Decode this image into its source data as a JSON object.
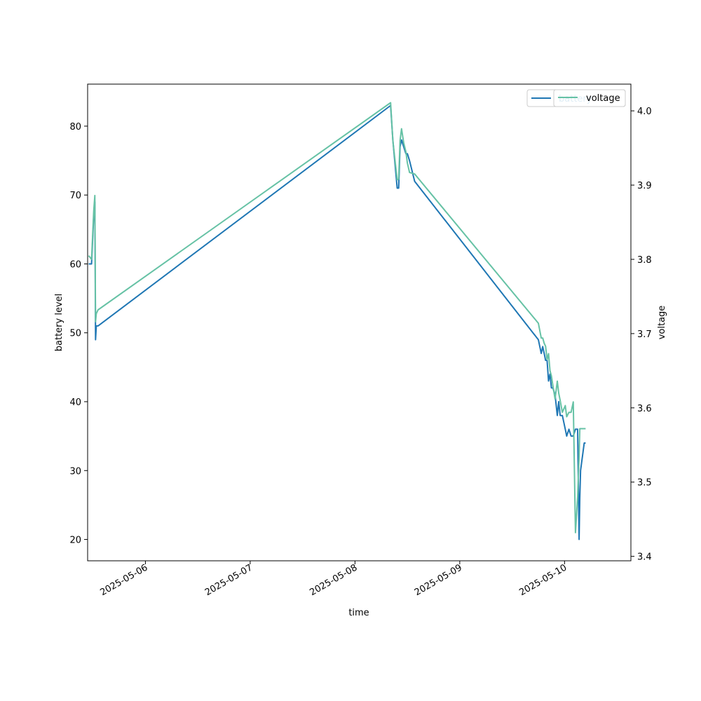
{
  "chart_data": {
    "type": "line",
    "xlabel": "time",
    "ylabel": "battery level",
    "y2label": "voltage",
    "x_ticks": [
      "2025-05-06",
      "2025-05-07",
      "2025-05-08",
      "2025-05-09",
      "2025-05-10"
    ],
    "y_ticks": [
      "20",
      "30",
      "40",
      "50",
      "60",
      "70",
      "80"
    ],
    "y2_ticks": [
      "3.4",
      "3.5",
      "3.6",
      "3.7",
      "3.8",
      "3.9",
      "4.0"
    ],
    "xlim": [
      "2025-05-05 10:46",
      "2025-05-10 15:12"
    ],
    "ylim": [
      16.9,
      86.1
    ],
    "y2lim": [
      3.394,
      4.036
    ],
    "grid": false,
    "legend_placement": "top-right",
    "colors": {
      "battery": "#1f77b4",
      "voltage": "#66c2a5"
    },
    "series": [
      {
        "name": "battery",
        "axis": "left",
        "x": [
          "2025-05-05 11:00",
          "2025-05-05 11:40",
          "2025-05-05 12:10",
          "2025-05-05 12:25",
          "2025-05-05 12:35",
          "2025-05-05 12:45",
          "2025-05-05 13:10",
          "2025-05-08 08:10",
          "2025-05-08 08:40",
          "2025-05-08 09:40",
          "2025-05-08 10:00",
          "2025-05-08 10:20",
          "2025-05-08 10:40",
          "2025-05-08 11:10",
          "2025-05-08 11:40",
          "2025-05-08 12:00",
          "2025-05-08 12:30",
          "2025-05-08 13:40",
          "2025-05-09 18:00",
          "2025-05-09 18:40",
          "2025-05-09 19:00",
          "2025-05-09 19:20",
          "2025-05-09 19:40",
          "2025-05-09 20:00",
          "2025-05-09 20:20",
          "2025-05-09 20:40",
          "2025-05-09 21:00",
          "2025-05-09 21:20",
          "2025-05-09 21:50",
          "2025-05-09 22:20",
          "2025-05-09 22:40",
          "2025-05-09 23:00",
          "2025-05-09 23:30",
          "2025-05-10 00:10",
          "2025-05-10 00:30",
          "2025-05-10 01:00",
          "2025-05-10 01:30",
          "2025-05-10 02:00",
          "2025-05-10 02:30",
          "2025-05-10 03:00",
          "2025-05-10 03:20",
          "2025-05-10 03:30",
          "2025-05-10 03:40",
          "2025-05-10 04:30",
          "2025-05-10 04:50"
        ],
        "values": [
          60,
          60,
          67,
          69,
          49,
          51,
          51,
          83,
          78,
          71,
          71,
          77,
          78,
          77,
          76,
          76,
          75,
          72,
          49,
          47,
          48,
          47,
          46,
          46,
          43,
          44,
          42,
          42,
          41,
          38,
          40,
          38,
          38,
          36,
          35,
          36,
          35,
          35,
          36,
          36,
          20,
          26,
          30,
          34,
          34
        ]
      },
      {
        "name": "voltage",
        "axis": "right",
        "x": [
          "2025-05-05 11:00",
          "2025-05-05 11:40",
          "2025-05-05 12:10",
          "2025-05-05 12:25",
          "2025-05-05 12:35",
          "2025-05-05 12:45",
          "2025-05-05 13:10",
          "2025-05-08 08:10",
          "2025-05-08 08:40",
          "2025-05-08 09:40",
          "2025-05-08 10:00",
          "2025-05-08 10:20",
          "2025-05-08 10:40",
          "2025-05-08 11:10",
          "2025-05-08 11:40",
          "2025-05-08 12:00",
          "2025-05-08 12:30",
          "2025-05-08 13:40",
          "2025-05-09 18:00",
          "2025-05-09 18:40",
          "2025-05-09 19:00",
          "2025-05-09 19:20",
          "2025-05-09 19:40",
          "2025-05-09 20:00",
          "2025-05-09 20:20",
          "2025-05-09 20:40",
          "2025-05-09 21:00",
          "2025-05-09 21:20",
          "2025-05-09 21:50",
          "2025-05-09 22:20",
          "2025-05-09 22:40",
          "2025-05-09 23:00",
          "2025-05-09 23:30",
          "2025-05-10 00:10",
          "2025-05-10 00:30",
          "2025-05-10 01:00",
          "2025-05-10 01:30",
          "2025-05-10 02:00",
          "2025-05-10 02:30",
          "2025-05-10 03:00",
          "2025-05-10 03:20",
          "2025-05-10 03:30",
          "2025-05-10 03:40",
          "2025-05-10 04:30",
          "2025-05-10 04:50"
        ],
        "values": [
          3.805,
          3.8,
          3.865,
          3.886,
          3.716,
          3.727,
          3.732,
          4.011,
          3.96,
          3.907,
          3.908,
          3.96,
          3.976,
          3.957,
          3.945,
          3.93,
          3.917,
          3.915,
          3.714,
          3.694,
          3.694,
          3.687,
          3.683,
          3.665,
          3.673,
          3.65,
          3.643,
          3.63,
          3.612,
          3.636,
          3.62,
          3.61,
          3.594,
          3.603,
          3.588,
          3.594,
          3.594,
          3.608,
          3.432,
          3.48,
          3.534,
          3.572,
          3.572,
          3.572,
          3.572
        ]
      }
    ],
    "legend": [
      {
        "label": "battery",
        "color": "#1f77b4"
      },
      {
        "label": "voltage",
        "color": "#66c2a5"
      }
    ]
  }
}
